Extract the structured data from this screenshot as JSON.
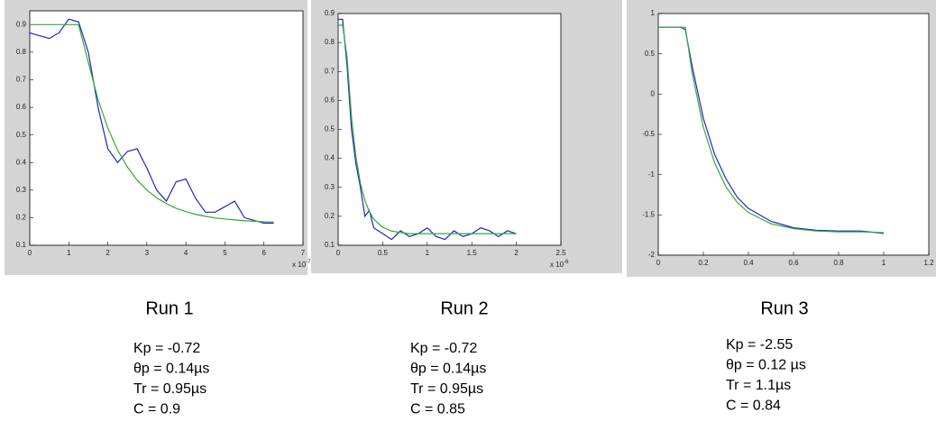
{
  "chart_data": [
    {
      "type": "line",
      "title": "Run 1",
      "annotations": [
        "Kp = -0.72",
        "θp = 0.14µs",
        "Tr = 0.95µs",
        "C = 0.9"
      ],
      "x": [
        0,
        0.25,
        0.5,
        0.75,
        1,
        1.25,
        1.5,
        1.75,
        2,
        2.25,
        2.5,
        2.75,
        3,
        3.25,
        3.5,
        3.75,
        4,
        4.25,
        4.5,
        4.75,
        5,
        5.25,
        5.5,
        5.75,
        6,
        6.25
      ],
      "series": [
        {
          "color": "#2222cc",
          "values": [
            0.87,
            0.86,
            0.85,
            0.87,
            0.92,
            0.91,
            0.8,
            0.6,
            0.45,
            0.4,
            0.44,
            0.45,
            0.38,
            0.3,
            0.26,
            0.33,
            0.34,
            0.27,
            0.22,
            0.22,
            0.24,
            0.26,
            0.2,
            0.19,
            0.18,
            0.18
          ]
        },
        {
          "color": "#33aa33",
          "values": [
            0.9,
            0.9,
            0.9,
            0.9,
            0.9,
            0.9,
            0.763,
            0.628,
            0.525,
            0.445,
            0.384,
            0.336,
            0.3,
            0.272,
            0.251,
            0.234,
            0.222,
            0.212,
            0.205,
            0.199,
            0.195,
            0.192,
            0.189,
            0.187,
            0.185,
            0.184
          ]
        }
      ],
      "xlim": [
        0,
        7
      ],
      "xticks": [
        0,
        1,
        2,
        3,
        4,
        5,
        6,
        7
      ],
      "ylim": [
        0.1,
        0.95
      ],
      "yticks": [
        0.1,
        0.2,
        0.3,
        0.4,
        0.5,
        0.6,
        0.7,
        0.8,
        0.9
      ],
      "x_multiplier": "x 10",
      "x_exponent": "-7"
    },
    {
      "type": "line",
      "title": "Run 2",
      "annotations": [
        "Kp = -0.72",
        "θp = 0.14µs",
        "Tr = 0.95µs",
        "C = 0.85"
      ],
      "x": [
        0,
        0.05,
        0.1,
        0.15,
        0.2,
        0.25,
        0.3,
        0.35,
        0.4,
        0.5,
        0.6,
        0.7,
        0.8,
        0.9,
        1,
        1.1,
        1.2,
        1.3,
        1.4,
        1.5,
        1.6,
        1.7,
        1.8,
        1.9,
        2
      ],
      "series": [
        {
          "color": "#2222cc",
          "values": [
            0.88,
            0.88,
            0.72,
            0.5,
            0.38,
            0.3,
            0.2,
            0.22,
            0.16,
            0.14,
            0.12,
            0.15,
            0.13,
            0.14,
            0.16,
            0.13,
            0.12,
            0.15,
            0.13,
            0.14,
            0.16,
            0.15,
            0.13,
            0.15,
            0.14
          ]
        },
        {
          "color": "#33aa33",
          "values": [
            0.86,
            0.86,
            0.749,
            0.542,
            0.405,
            0.314,
            0.255,
            0.216,
            0.19,
            0.162,
            0.149,
            0.144,
            0.14,
            0.14,
            0.14,
            0.14,
            0.14,
            0.14,
            0.14,
            0.14,
            0.14,
            0.14,
            0.14,
            0.14,
            0.14
          ]
        }
      ],
      "xlim": [
        0,
        2.5
      ],
      "xticks": [
        0,
        0.5,
        1,
        1.5,
        2,
        2.5
      ],
      "ylim": [
        0.1,
        0.9
      ],
      "yticks": [
        0.1,
        0.2,
        0.3,
        0.4,
        0.5,
        0.6,
        0.7,
        0.8,
        0.9
      ],
      "x_multiplier": "x 10",
      "x_exponent": "-6"
    },
    {
      "type": "line",
      "title": "Run 3",
      "annotations": [
        "Kp = -2.55",
        "θp = 0.12 µs",
        "Tr = 1.1µs",
        "C = 0.84"
      ],
      "x": [
        0,
        0.05,
        0.1,
        0.12,
        0.15,
        0.2,
        0.25,
        0.3,
        0.35,
        0.4,
        0.5,
        0.6,
        0.7,
        0.8,
        0.9,
        1
      ],
      "series": [
        {
          "color": "#2222cc",
          "values": [
            0.83,
            0.83,
            0.83,
            0.8,
            0.35,
            -0.3,
            -0.75,
            -1.05,
            -1.28,
            -1.42,
            -1.58,
            -1.66,
            -1.69,
            -1.7,
            -1.7,
            -1.73
          ]
        },
        {
          "color": "#33aa33",
          "values": [
            0.83,
            0.83,
            0.83,
            0.83,
            0.266,
            -0.412,
            -0.856,
            -1.15,
            -1.345,
            -1.47,
            -1.61,
            -1.67,
            -1.7,
            -1.71,
            -1.71,
            -1.72
          ]
        }
      ],
      "xlim": [
        0,
        1.2
      ],
      "xticks": [
        0,
        0.2,
        0.4,
        0.6,
        0.8,
        1,
        1.2
      ],
      "ylim": [
        -2,
        1
      ],
      "yticks": [
        -2,
        -1.5,
        -1,
        -0.5,
        0,
        0.5,
        1
      ]
    }
  ]
}
